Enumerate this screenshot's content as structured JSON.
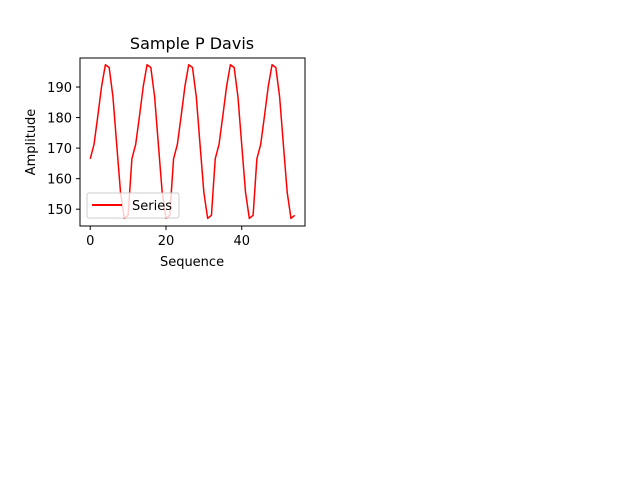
{
  "chart_data": {
    "type": "line",
    "title": "Sample P Davis",
    "xlabel": "Sequence",
    "ylabel": "Amplitude",
    "xlim": [
      -2.7,
      56.7
    ],
    "ylim": [
      144.5,
      199.5
    ],
    "xticks": [
      0,
      20,
      40
    ],
    "yticks": [
      150,
      160,
      170,
      180,
      190
    ],
    "grid": false,
    "legend_position": "lower-left",
    "series": [
      {
        "name": "Series",
        "color": "#ff0000",
        "x": [
          0,
          1,
          2,
          3,
          4,
          5,
          6,
          7,
          8,
          9,
          10,
          11,
          12,
          13,
          14,
          15,
          16,
          17,
          18,
          19,
          20,
          21,
          22,
          23,
          24,
          25,
          26,
          27,
          28,
          29,
          30,
          31,
          32,
          33,
          34,
          35,
          36,
          37,
          38,
          39,
          40,
          41,
          42,
          43,
          44,
          45,
          46,
          47,
          48,
          49,
          50,
          51,
          52,
          53,
          54
        ],
        "values": [
          166.5,
          171.2,
          180.5,
          190.2,
          197.3,
          196.4,
          186.8,
          171.0,
          155.5,
          147.0,
          148.0,
          166.5,
          171.2,
          180.5,
          190.2,
          197.3,
          196.4,
          186.8,
          171.0,
          155.5,
          147.0,
          148.0,
          166.5,
          171.2,
          180.5,
          190.2,
          197.3,
          196.4,
          186.8,
          171.0,
          155.5,
          147.0,
          148.0,
          166.5,
          171.2,
          180.5,
          190.2,
          197.3,
          196.4,
          186.8,
          171.0,
          155.5,
          147.0,
          148.0,
          166.5,
          171.2,
          180.5,
          190.2,
          197.3,
          196.4,
          186.8,
          171.0,
          155.5,
          147.0,
          148.0
        ]
      }
    ]
  }
}
